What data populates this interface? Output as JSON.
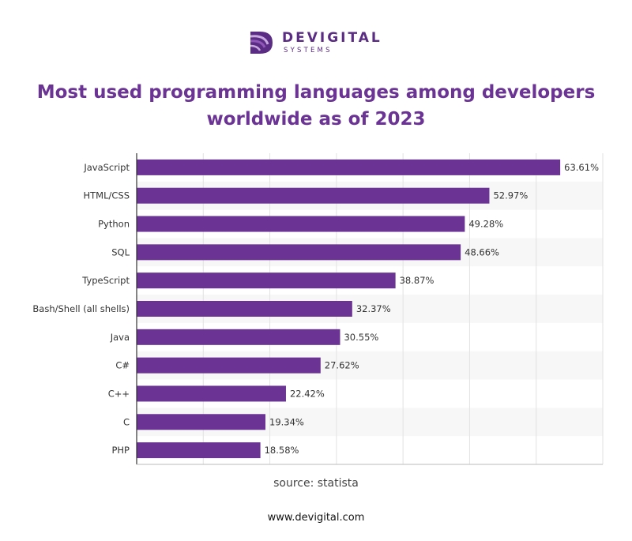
{
  "brand": {
    "name": "DEVIGITAL",
    "sub": "SYSTEMS",
    "mark_colors": [
      "#5b2c83",
      "#8e57b8",
      "#c8a9e0"
    ]
  },
  "title_lines": [
    "Most used programming languages among developers",
    "worldwide as of 2023"
  ],
  "source": "source: statista",
  "website": "www.devigital.com",
  "chart_data": {
    "type": "bar",
    "orientation": "horizontal",
    "categories": [
      "JavaScript",
      "HTML/CSS",
      "Python",
      "SQL",
      "TypeScript",
      "Bash/Shell (all shells)",
      "Java",
      "C#",
      "C++",
      "C",
      "PHP"
    ],
    "values": [
      63.61,
      52.97,
      49.28,
      48.66,
      38.87,
      32.37,
      30.55,
      27.62,
      22.42,
      19.34,
      18.58
    ],
    "value_labels": [
      "63.61%",
      "52.97%",
      "49.28%",
      "48.66%",
      "38.87%",
      "32.37%",
      "30.55%",
      "27.62%",
      "22.42%",
      "19.34%",
      "18.58%"
    ],
    "xlim": [
      0,
      70
    ],
    "grid": true,
    "bar_color": "#6a3394",
    "title": "",
    "xlabel": "",
    "ylabel": ""
  }
}
